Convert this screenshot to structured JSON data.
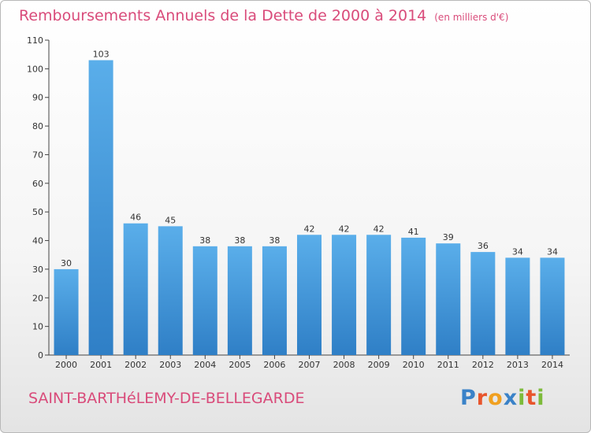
{
  "header": {
    "title": "Remboursements Annuels de la Dette de 2000 à 2014",
    "unit": "(en milliers d'€)"
  },
  "footer": {
    "commune": "SAINT-BARTHéLEMY-DE-BELLEGARDE",
    "logo": [
      "P",
      "r",
      "o",
      "x",
      "i",
      "t",
      "i"
    ]
  },
  "colors": {
    "title": "#d94b7a",
    "bar_top": "#5aaeea",
    "bar_bottom": "#2f7fc6",
    "logo": [
      "#3a82c8",
      "#e8552c",
      "#f0a020",
      "#3a82c8",
      "#7dbb3a",
      "#e8552c",
      "#7dbb3a"
    ]
  },
  "chart_data": {
    "type": "bar",
    "title": "Remboursements Annuels de la Dette de 2000 à 2014",
    "xlabel": "",
    "ylabel": "",
    "ylim": [
      0,
      110
    ],
    "yticks": [
      0,
      10,
      20,
      30,
      40,
      50,
      60,
      70,
      80,
      90,
      100,
      110
    ],
    "categories": [
      "2000",
      "2001",
      "2002",
      "2003",
      "2004",
      "2005",
      "2006",
      "2007",
      "2008",
      "2009",
      "2010",
      "2011",
      "2012",
      "2013",
      "2014"
    ],
    "values": [
      30,
      103,
      46,
      45,
      38,
      38,
      38,
      42,
      42,
      42,
      41,
      39,
      36,
      34,
      34
    ],
    "grid": false,
    "legend": "none"
  }
}
